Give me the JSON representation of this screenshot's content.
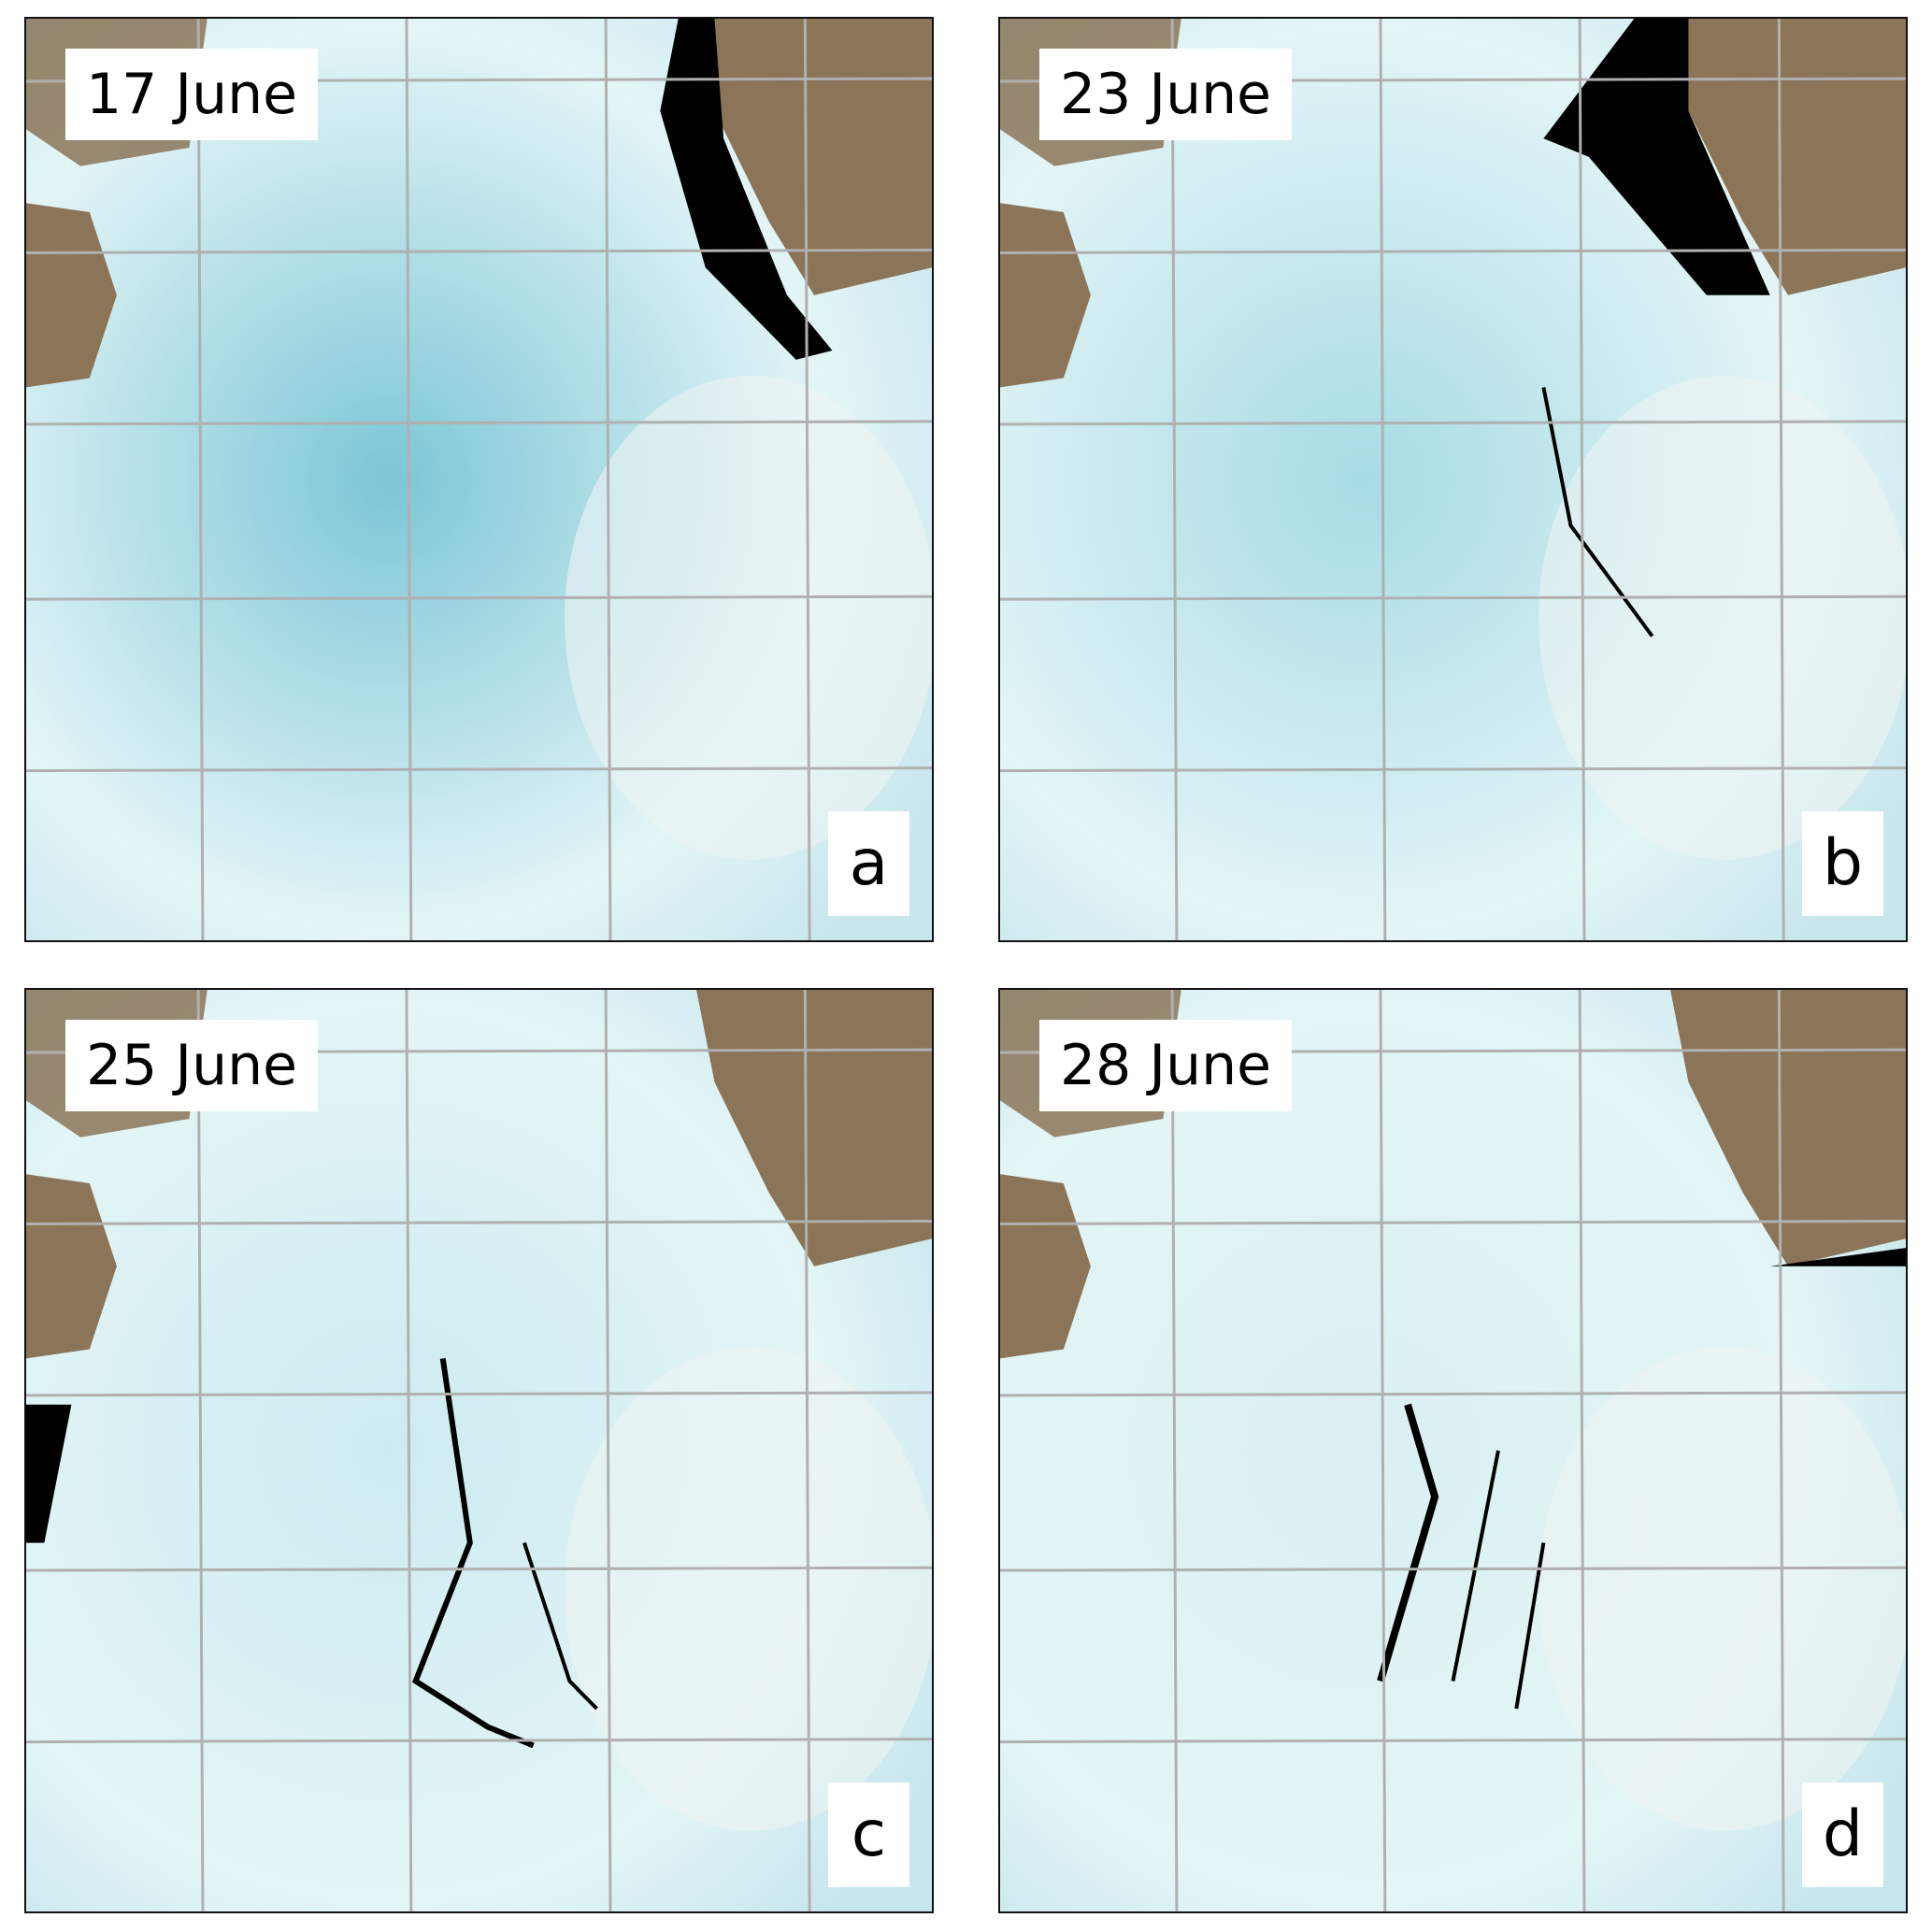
{
  "panels": [
    {
      "date": "17 June",
      "letter": "a",
      "ice_tint": "#7cc6d6",
      "open_water": "east-coast-lead"
    },
    {
      "date": "23 June",
      "letter": "b",
      "ice_tint": "#a7dbe4",
      "open_water": "broken-floes-northeast"
    },
    {
      "date": "25 June",
      "letter": "c",
      "ice_tint": "#cdebef",
      "open_water": "cracks-central"
    },
    {
      "date": "28 June",
      "letter": "d",
      "ice_tint": "#daf0f2",
      "open_water": "cracks-central-east"
    }
  ],
  "colors": {
    "land": "#8b7458",
    "water": "#000000",
    "grid": "#b0b0b0",
    "frame": "#111111"
  }
}
